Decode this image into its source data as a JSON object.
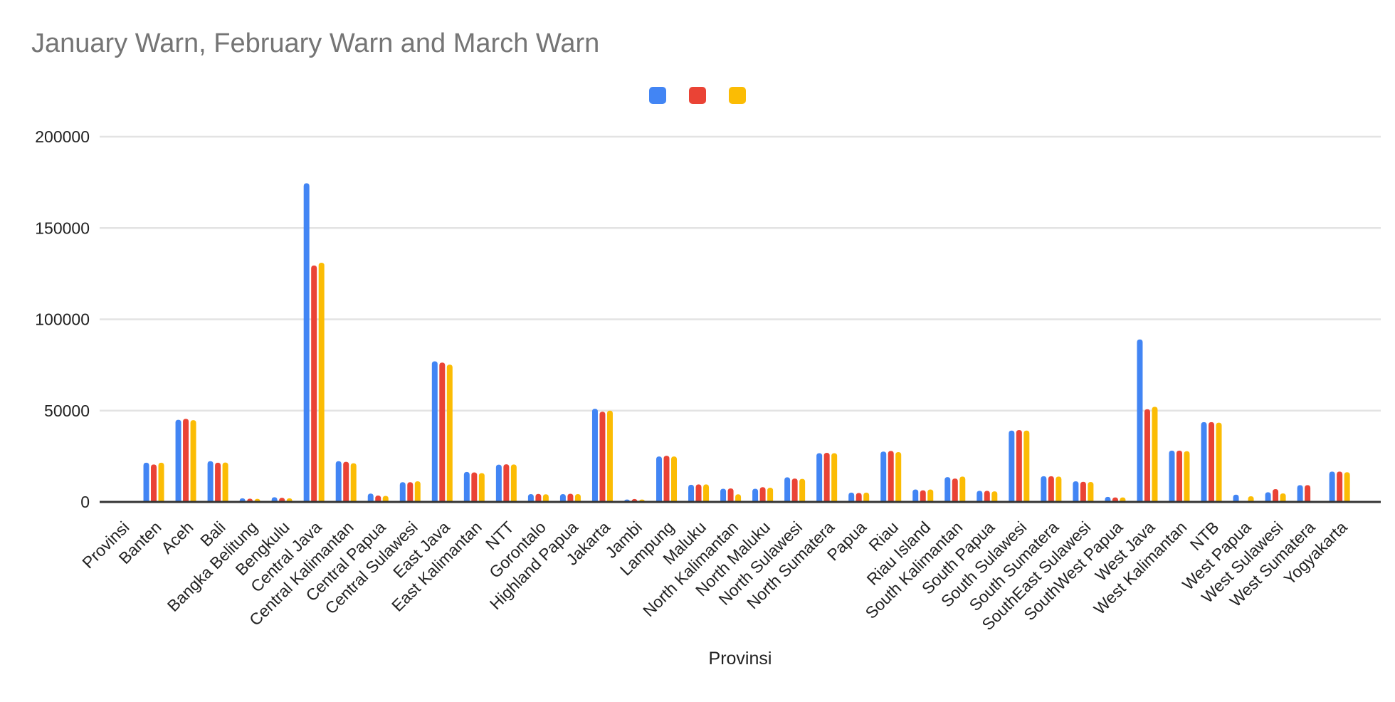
{
  "page": {
    "background": "#ffffff"
  },
  "header": {
    "title": "January Warn, February Warn and March Warn",
    "title_color": "#757575"
  },
  "legend": {
    "labels_visible": false,
    "items": [
      {
        "series": "January Warn",
        "color": "#4285F4"
      },
      {
        "series": "February Warn",
        "color": "#EA4335"
      },
      {
        "series": "March Warn",
        "color": "#FBBC04"
      }
    ]
  },
  "axes": {
    "x_title": "Provinsi",
    "y_tick_labels": [
      "0",
      "50000",
      "100000",
      "150000",
      "200000"
    ],
    "label_color": "#222222",
    "grid_color": "#e3e3e3",
    "axis_line_color": "#333333"
  },
  "chart_data": {
    "type": "bar",
    "title": "January Warn, February Warn and March Warn",
    "xlabel": "Provinsi",
    "ylabel": "",
    "ylim": [
      0,
      200000
    ],
    "yticks": [
      0,
      50000,
      100000,
      150000,
      200000
    ],
    "grid": true,
    "legend_position": "top",
    "legend_labels_visible": false,
    "categories": [
      "Provinsi",
      "Banten",
      "Aceh",
      "Bali",
      "Bangka Belitung",
      "Bengkulu",
      "Central Java",
      "Central Kalimantan",
      "Central Papua",
      "Central Sulawesi",
      "East Java",
      "East Kalimantan",
      "NTT",
      "Gorontalo",
      "Highland Papua",
      "Jakarta",
      "Jambi",
      "Lampung",
      "Maluku",
      "North Kalimantan",
      "North Maluku",
      "North Sulawesi",
      "North Sumatera",
      "Papua",
      "Riau",
      "Riau Island",
      "South Kalimantan",
      "South Papua",
      "South Sulawesi",
      "South Sumatera",
      "SouthEast Sulawesi",
      "SouthWest Papua",
      "West Java",
      "West Kalimantan",
      "NTB",
      "West Papua",
      "West Sulawesi",
      "West Sumatera",
      "Yogyakarta"
    ],
    "series": [
      {
        "name": "January Warn",
        "color": "#4285F4",
        "values": [
          0,
          21500,
          45000,
          22300,
          2000,
          2600,
          174500,
          22300,
          4600,
          10800,
          77000,
          16400,
          20400,
          4300,
          4300,
          51000,
          1300,
          24900,
          9400,
          7200,
          7200,
          13500,
          26700,
          5100,
          27600,
          6800,
          13600,
          6100,
          39100,
          14100,
          11300,
          2800,
          89000,
          28100,
          43700,
          4000,
          5300,
          9200,
          16600
        ]
      },
      {
        "name": "February Warn",
        "color": "#EA4335",
        "values": [
          0,
          20500,
          45500,
          21500,
          1800,
          2300,
          129500,
          22000,
          3500,
          10800,
          76300,
          16200,
          20600,
          4400,
          4500,
          49400,
          1600,
          25300,
          9600,
          7400,
          8100,
          12800,
          26900,
          4900,
          27900,
          6400,
          12800,
          6100,
          39400,
          14100,
          11000,
          2500,
          50800,
          28100,
          43700,
          0,
          7000,
          9200,
          16600
        ]
      },
      {
        "name": "March Warn",
        "color": "#FBBC04",
        "values": [
          0,
          21500,
          44800,
          21600,
          1700,
          2000,
          131000,
          21200,
          3300,
          11300,
          75200,
          15800,
          20500,
          4200,
          4300,
          50000,
          1300,
          24900,
          9600,
          4200,
          7800,
          12600,
          26700,
          5100,
          27300,
          6800,
          13900,
          5800,
          39100,
          13900,
          10900,
          2500,
          52100,
          27800,
          43400,
          3100,
          4700,
          0,
          16300
        ]
      }
    ]
  }
}
